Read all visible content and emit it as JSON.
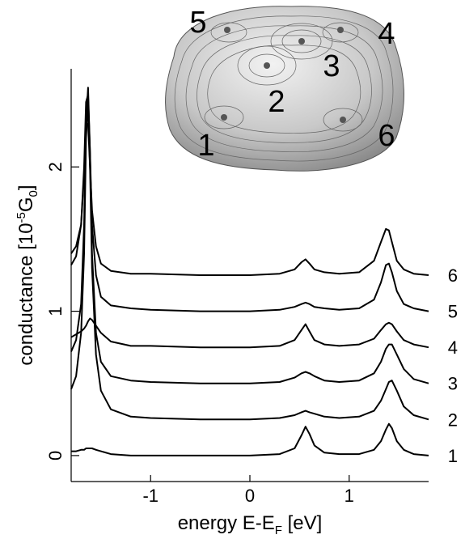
{
  "chart_data": {
    "type": "line",
    "xlabel": [
      "energy E-E",
      "F",
      " [eV]"
    ],
    "ylabel": [
      "conductance [10",
      "-5",
      "G",
      "0",
      "]"
    ],
    "x": [
      -1.8,
      -1.75,
      -1.7,
      -1.67,
      -1.65,
      -1.63,
      -1.61,
      -1.59,
      -1.55,
      -1.5,
      -1.4,
      -1.2,
      -1.0,
      -0.5,
      0,
      0.3,
      0.45,
      0.52,
      0.56,
      0.6,
      0.65,
      0.75,
      0.9,
      1.1,
      1.25,
      1.32,
      1.37,
      1.4,
      1.43,
      1.48,
      1.55,
      1.65,
      1.8
    ],
    "series": [
      {
        "name": "1",
        "color": "#000000",
        "values": [
          0.03,
          0.03,
          0.04,
          0.04,
          0.05,
          0.05,
          0.05,
          0.05,
          0.04,
          0.03,
          0.01,
          0.0,
          0.0,
          0.0,
          0.0,
          0.01,
          0.05,
          0.14,
          0.2,
          0.15,
          0.07,
          0.02,
          0.01,
          0.01,
          0.04,
          0.1,
          0.18,
          0.22,
          0.19,
          0.1,
          0.04,
          0.01,
          0.0
        ]
      },
      {
        "name": "2",
        "color": "#000000",
        "values": [
          0.46,
          0.55,
          0.85,
          1.4,
          2.2,
          2.45,
          2.0,
          1.3,
          0.7,
          0.45,
          0.32,
          0.27,
          0.26,
          0.25,
          0.25,
          0.26,
          0.28,
          0.3,
          0.31,
          0.3,
          0.29,
          0.27,
          0.26,
          0.27,
          0.31,
          0.38,
          0.46,
          0.51,
          0.52,
          0.45,
          0.34,
          0.28,
          0.25
        ]
      },
      {
        "name": "3",
        "color": "#000000",
        "values": [
          0.72,
          0.8,
          1.05,
          1.6,
          2.3,
          2.55,
          2.1,
          1.4,
          0.85,
          0.65,
          0.55,
          0.52,
          0.51,
          0.5,
          0.5,
          0.51,
          0.54,
          0.57,
          0.58,
          0.57,
          0.55,
          0.52,
          0.51,
          0.52,
          0.57,
          0.65,
          0.74,
          0.77,
          0.77,
          0.7,
          0.6,
          0.53,
          0.5
        ]
      },
      {
        "name": "4",
        "color": "#000000",
        "values": [
          0.82,
          0.84,
          0.86,
          0.88,
          0.9,
          0.93,
          0.95,
          0.94,
          0.9,
          0.85,
          0.79,
          0.76,
          0.76,
          0.75,
          0.75,
          0.76,
          0.8,
          0.87,
          0.91,
          0.86,
          0.8,
          0.77,
          0.76,
          0.77,
          0.81,
          0.87,
          0.91,
          0.92,
          0.91,
          0.86,
          0.8,
          0.77,
          0.75
        ]
      },
      {
        "name": "5",
        "color": "#000000",
        "values": [
          1.32,
          1.38,
          1.6,
          2.0,
          2.45,
          2.5,
          2.1,
          1.6,
          1.25,
          1.1,
          1.04,
          1.02,
          1.01,
          1.0,
          1.0,
          1.01,
          1.03,
          1.05,
          1.06,
          1.05,
          1.03,
          1.02,
          1.01,
          1.02,
          1.08,
          1.2,
          1.32,
          1.33,
          1.27,
          1.14,
          1.05,
          1.02,
          1.0
        ]
      },
      {
        "name": "6",
        "color": "#000000",
        "values": [
          1.4,
          1.45,
          1.6,
          1.95,
          2.3,
          2.3,
          2.0,
          1.7,
          1.45,
          1.33,
          1.28,
          1.26,
          1.26,
          1.25,
          1.25,
          1.26,
          1.29,
          1.34,
          1.36,
          1.33,
          1.29,
          1.27,
          1.26,
          1.27,
          1.35,
          1.48,
          1.57,
          1.56,
          1.48,
          1.35,
          1.29,
          1.26,
          1.25
        ]
      }
    ],
    "xlim": [
      -1.8,
      1.8
    ],
    "xticks": [
      -1,
      0,
      1
    ],
    "ylim": [
      -0.18,
      2.68
    ],
    "yticks": [
      0,
      1,
      2
    ],
    "annotations": [
      "5",
      "4",
      "3",
      "2",
      "1",
      "6"
    ]
  }
}
